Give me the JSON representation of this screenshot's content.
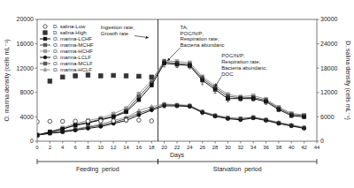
{
  "chart_data": {
    "type": "line",
    "xlabel": "Days",
    "ylabel": "O. marina density (cells mL⁻¹)",
    "y2label": "D. salina density (cells mL⁻¹)",
    "xlim": [
      0,
      44
    ],
    "xticks": [
      0,
      2,
      4,
      6,
      8,
      10,
      12,
      14,
      16,
      18,
      20,
      22,
      24,
      26,
      28,
      30,
      32,
      34,
      36,
      38,
      40,
      42,
      44
    ],
    "ylim": [
      0,
      20000
    ],
    "yticks": [
      0,
      4000,
      8000,
      12000,
      16000,
      20000
    ],
    "y2lim": [
      0,
      30000
    ],
    "y2ticks": [
      0,
      6000,
      12000,
      18000,
      24000,
      30000
    ],
    "grid": false,
    "legend": "upper left",
    "series": [
      {
        "name": "D. salina-Low",
        "axis": "y2",
        "color": "#333333",
        "marker": "circle-open",
        "line_style": "none",
        "x": [
          0,
          2,
          4,
          6,
          8,
          10,
          12,
          14,
          16,
          18
        ],
        "values": [
          4800,
          4900,
          4900,
          4950,
          4950,
          5000,
          5000,
          5200,
          5200,
          5000
        ]
      },
      {
        "name": "D. salina-High",
        "axis": "y2",
        "color": "#333333",
        "marker": "square",
        "line_style": "none",
        "x": [
          2,
          4,
          6,
          8,
          10,
          12,
          14,
          16,
          18
        ],
        "values": [
          14800,
          15800,
          16100,
          16300,
          16100,
          16200,
          16100,
          16000,
          15800
        ]
      },
      {
        "name": "O. marina-LCHF",
        "color": "#111111",
        "marker": "square",
        "line_style": "solid",
        "x": [
          0,
          2,
          4,
          6,
          8,
          10,
          12,
          14,
          16,
          18,
          20,
          22,
          24,
          26,
          28,
          30,
          32,
          34,
          36,
          38,
          40,
          42
        ],
        "values": [
          1000,
          1500,
          2000,
          2600,
          3000,
          3500,
          4000,
          4800,
          6800,
          9200,
          12800,
          12600,
          12400,
          10000,
          8500,
          7000,
          7000,
          7000,
          6500,
          5200,
          4200,
          4000
        ],
        "errors": [
          null,
          null,
          null,
          null,
          null,
          null,
          null,
          null,
          null,
          null,
          600,
          500,
          500,
          700,
          600,
          500,
          400,
          400,
          450,
          350,
          300,
          300
        ]
      },
      {
        "name": "O. marina-MCHF",
        "color": "#555555",
        "marker": "square",
        "line_style": "solid",
        "x": [
          0,
          2,
          4,
          6,
          8,
          10,
          12,
          14,
          16,
          18,
          20,
          22,
          24,
          26,
          28,
          30,
          32,
          34,
          36,
          38,
          40,
          42
        ],
        "values": [
          1000,
          1500,
          2000,
          2700,
          3100,
          3600,
          4100,
          5000,
          7300,
          9600,
          13000,
          12800,
          12600,
          10300,
          8800,
          7400,
          7100,
          7200,
          6700,
          5400,
          4400,
          4200
        ]
      },
      {
        "name": "O. marina-HCHF",
        "color": "#999999",
        "marker": "square",
        "line_style": "solid",
        "x": [
          0,
          2,
          4,
          6,
          8,
          10,
          12,
          14,
          16,
          18,
          20,
          22,
          24,
          26,
          28,
          30,
          32,
          34,
          36,
          38,
          40,
          42
        ],
        "values": [
          1000,
          1600,
          2200,
          2900,
          3400,
          3800,
          4500,
          5400,
          7800,
          10000,
          13200,
          13100,
          12900,
          10600,
          9100,
          7700,
          7300,
          7500,
          6900,
          5600,
          4600,
          4300
        ]
      },
      {
        "name": "O. marina-LCLF",
        "color": "#111111",
        "marker": "circle",
        "line_style": "solid",
        "x": [
          0,
          2,
          4,
          6,
          8,
          10,
          12,
          14,
          16,
          18,
          20,
          22,
          24,
          26,
          28,
          30,
          32,
          34,
          36,
          38,
          40,
          42
        ],
        "values": [
          1000,
          1300,
          1500,
          1800,
          2100,
          2400,
          2900,
          3400,
          4300,
          5100,
          5800,
          5800,
          5700,
          4700,
          4100,
          3700,
          3500,
          3800,
          3400,
          2900,
          2500,
          2100
        ],
        "errors": [
          null,
          null,
          null,
          null,
          null,
          null,
          null,
          null,
          null,
          null,
          300,
          280,
          280,
          330,
          280,
          240,
          220,
          220,
          190,
          170,
          150,
          140
        ]
      },
      {
        "name": "O. marina-MCLF",
        "color": "#555555",
        "marker": "square",
        "line_style": "solid",
        "x": [
          0,
          2,
          4,
          6,
          8,
          10,
          12,
          14,
          16,
          18,
          20,
          22,
          24,
          26,
          28,
          30,
          32,
          34,
          36,
          38,
          40,
          42
        ],
        "values": [
          1000,
          1300,
          1600,
          1900,
          2300,
          2600,
          3100,
          3700,
          4600,
          5300,
          6000,
          5900,
          5800,
          4800,
          4200,
          3800,
          3700,
          3900,
          3500,
          3000,
          2600,
          2200
        ]
      },
      {
        "name": "O. marina-HCLF",
        "color": "#999999",
        "marker": "triangle",
        "line_style": "solid",
        "x": [
          0,
          2,
          4,
          6,
          8,
          10,
          12,
          14,
          16,
          18,
          20,
          22,
          24,
          26,
          28,
          30,
          32,
          34,
          36,
          38,
          40,
          42
        ],
        "values": [
          1000,
          1400,
          1700,
          2000,
          2400,
          2800,
          3400,
          3900,
          5000,
          5700,
          6100,
          6000,
          5900,
          4900,
          4300,
          3900,
          3700,
          4000,
          3600,
          3100,
          2700,
          2300
        ]
      }
    ],
    "periods": [
      {
        "label": "Feeding  period",
        "start": 0,
        "end": 19
      },
      {
        "label": "Starvation  period",
        "start": 19,
        "end": 44
      }
    ],
    "annotations": [
      {
        "text": "Ingestion rate;\nGrowth rate",
        "x": 17.5,
        "y": 17000,
        "text_x": 10,
        "text_y": 19200
      },
      {
        "text": "TA;\nPOC/N/P;\nRespiration rate;\nBacteria abundanc",
        "x": 20.5,
        "y": 13200,
        "text_x": 22.5,
        "text_y": 19200
      },
      {
        "text": "POC/N/P;\nRespiration rate;\nBacteria abundanc;\nDOC",
        "x": 28,
        "y": 9000,
        "text_x": 29,
        "text_y": 14500
      }
    ]
  }
}
